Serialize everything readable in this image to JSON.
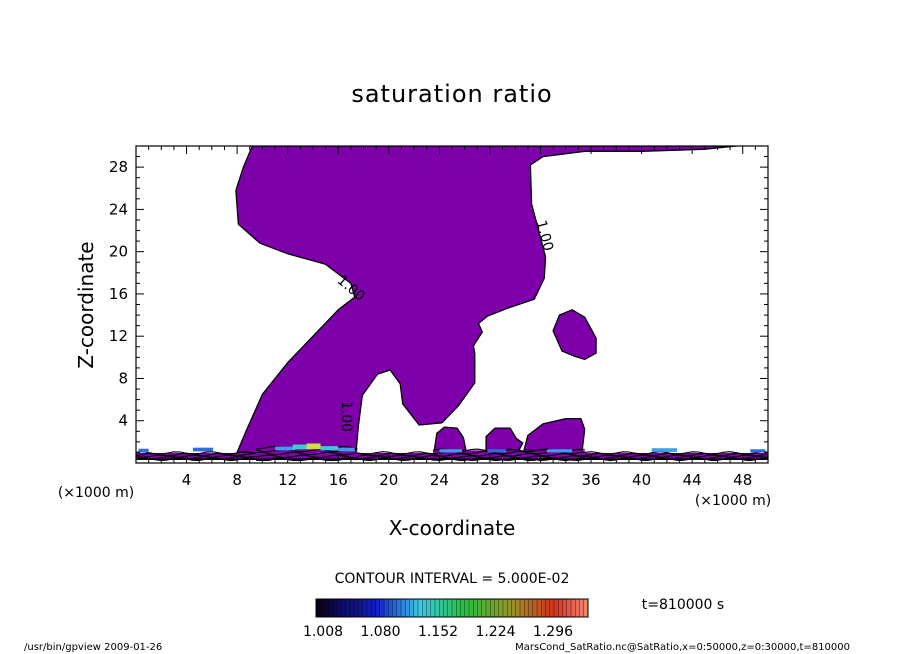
{
  "chart_data": {
    "type": "heatmap",
    "title": "saturation ratio",
    "xlabel": "X-coordinate",
    "ylabel": "Z-coordinate",
    "xlim": [
      0,
      50
    ],
    "ylim": [
      0,
      30
    ],
    "x_unit_label": "(×1000 m)",
    "y_unit_label": "(×1000 m)",
    "x_ticks": [
      4,
      8,
      12,
      16,
      20,
      24,
      28,
      32,
      36,
      40,
      44,
      48
    ],
    "y_ticks": [
      4,
      8,
      12,
      16,
      20,
      24,
      28
    ],
    "x_tick_labels": [
      "4",
      "8",
      "12",
      "16",
      "20",
      "24",
      "28",
      "32",
      "36",
      "40",
      "44",
      "48"
    ],
    "y_tick_labels": [
      "4",
      "8",
      "12",
      "16",
      "20",
      "24",
      "28"
    ],
    "contour_interval_text": "CONTOUR INTERVAL = 5.000E-02",
    "contour_labels": [
      {
        "text": "1.00",
        "x": 17.0,
        "y": 16.5,
        "angle": 40
      },
      {
        "text": "1.00",
        "x": 32.3,
        "y": 21.5,
        "angle": 75
      },
      {
        "text": "1.00",
        "x": 16.6,
        "y": 4.4,
        "angle": 90
      }
    ],
    "time_text": "t=810000 s",
    "colorbar": {
      "min": 1.008,
      "max": 1.296,
      "tick_labels": [
        "1.008",
        "1.080",
        "1.152",
        "1.224",
        "1.296"
      ],
      "n_bands": 64
    },
    "fill_color": "#7e00ab",
    "regions": [
      {
        "name": "main-plume",
        "points": [
          [
            8,
            1
          ],
          [
            8.7,
            3
          ],
          [
            10,
            6.5
          ],
          [
            12,
            9.5
          ],
          [
            14,
            12
          ],
          [
            16,
            14.5
          ],
          [
            17.3,
            15.7
          ],
          [
            17,
            17
          ],
          [
            15,
            18.8
          ],
          [
            12,
            19.8
          ],
          [
            9.8,
            20.8
          ],
          [
            8.1,
            22.6
          ],
          [
            7.9,
            25.8
          ],
          [
            8.5,
            28
          ],
          [
            9.2,
            30
          ],
          [
            47.5,
            30
          ],
          [
            45,
            29.7
          ],
          [
            40,
            29.5
          ],
          [
            35.5,
            29.5
          ],
          [
            32.2,
            29
          ],
          [
            31.2,
            28.2
          ],
          [
            31.3,
            24.5
          ],
          [
            31.9,
            21.8
          ],
          [
            32.4,
            19.5
          ],
          [
            32.3,
            17.5
          ],
          [
            31.5,
            15.5
          ],
          [
            29.5,
            14.7
          ],
          [
            27.8,
            13.9
          ],
          [
            27.1,
            13.2
          ],
          [
            27.4,
            12.4
          ],
          [
            26.7,
            11.1
          ],
          [
            26.8,
            10.3
          ],
          [
            26.8,
            7.6
          ],
          [
            25.5,
            5.4
          ],
          [
            24.2,
            3.8
          ],
          [
            22.4,
            3.6
          ],
          [
            21.1,
            5.6
          ],
          [
            20.9,
            7.5
          ],
          [
            20.1,
            8.8
          ],
          [
            19.1,
            8.4
          ],
          [
            17.9,
            6.4
          ],
          [
            17.6,
            3.6
          ],
          [
            17.4,
            0.9
          ],
          [
            15,
            0.9
          ],
          [
            12,
            0.9
          ],
          [
            9.5,
            0.9
          ]
        ]
      },
      {
        "name": "right-blob",
        "points": [
          [
            33,
            12.5
          ],
          [
            33.5,
            14
          ],
          [
            34.5,
            14.5
          ],
          [
            35.5,
            13.8
          ],
          [
            36.4,
            11.8
          ],
          [
            36.4,
            10.4
          ],
          [
            35.5,
            9.8
          ],
          [
            34.7,
            10.1
          ],
          [
            33.7,
            10.6
          ]
        ]
      },
      {
        "name": "small-blob-1",
        "points": [
          [
            23.6,
            1.2
          ],
          [
            23.8,
            2.8
          ],
          [
            24.4,
            3.4
          ],
          [
            25.4,
            3.3
          ],
          [
            25.9,
            2.4
          ],
          [
            26.1,
            1.2
          ]
        ]
      },
      {
        "name": "small-blob-2",
        "points": [
          [
            27.7,
            1.2
          ],
          [
            27.7,
            2.5
          ],
          [
            28.4,
            3.3
          ],
          [
            29.6,
            3.3
          ],
          [
            30.1,
            2.3
          ],
          [
            30.6,
            1.9
          ],
          [
            30.3,
            1.2
          ]
        ]
      },
      {
        "name": "small-blob-3",
        "points": [
          [
            30.7,
            1.2
          ],
          [
            31,
            2.6
          ],
          [
            32.2,
            3.7
          ],
          [
            34,
            4.2
          ],
          [
            35.2,
            4.2
          ],
          [
            35.5,
            3.2
          ],
          [
            35.3,
            1.2
          ]
        ]
      }
    ],
    "bands": [
      {
        "x0": 0,
        "x1": 50,
        "y0": 0.35,
        "y1": 0.95
      },
      {
        "x0": 9.5,
        "x1": 17.5,
        "y0": 0.35,
        "y1": 1.45
      },
      {
        "x0": 23.5,
        "x1": 35.5,
        "y0": 0.35,
        "y1": 1.2
      }
    ],
    "highlights": [
      {
        "x": 11.0,
        "y": 1.2,
        "w": 1.6,
        "h": 0.35,
        "color": "#3aa0e8"
      },
      {
        "x": 12.4,
        "y": 1.3,
        "w": 1.3,
        "h": 0.45,
        "color": "#38d0c8"
      },
      {
        "x": 13.5,
        "y": 1.3,
        "w": 1.1,
        "h": 0.55,
        "color": "#c8e040"
      },
      {
        "x": 14.6,
        "y": 1.2,
        "w": 1.4,
        "h": 0.4,
        "color": "#38c8d8"
      },
      {
        "x": 16.0,
        "y": 1.1,
        "w": 1.3,
        "h": 0.35,
        "color": "#3aa0e8"
      },
      {
        "x": 4.5,
        "y": 1.1,
        "w": 1.6,
        "h": 0.35,
        "color": "#2a70e0"
      },
      {
        "x": 24.0,
        "y": 1.0,
        "w": 1.8,
        "h": 0.3,
        "color": "#3aa0e8"
      },
      {
        "x": 27.8,
        "y": 1.0,
        "w": 1.5,
        "h": 0.3,
        "color": "#2a70e0"
      },
      {
        "x": 32.5,
        "y": 1.0,
        "w": 2.0,
        "h": 0.3,
        "color": "#3aa0e8"
      },
      {
        "x": 40.8,
        "y": 1.05,
        "w": 2.0,
        "h": 0.35,
        "color": "#3aa0e8"
      },
      {
        "x": 48.6,
        "y": 1.0,
        "w": 1.2,
        "h": 0.3,
        "color": "#2a70e0"
      },
      {
        "x": 0.2,
        "y": 1.0,
        "w": 0.8,
        "h": 0.35,
        "color": "#2a70e0"
      }
    ]
  },
  "footer_left": "/usr/bin/gpview   2009-01-26",
  "footer_right": "MarsCond_SatRatio.nc@SatRatio,x=0:50000,z=0:30000,t=810000"
}
